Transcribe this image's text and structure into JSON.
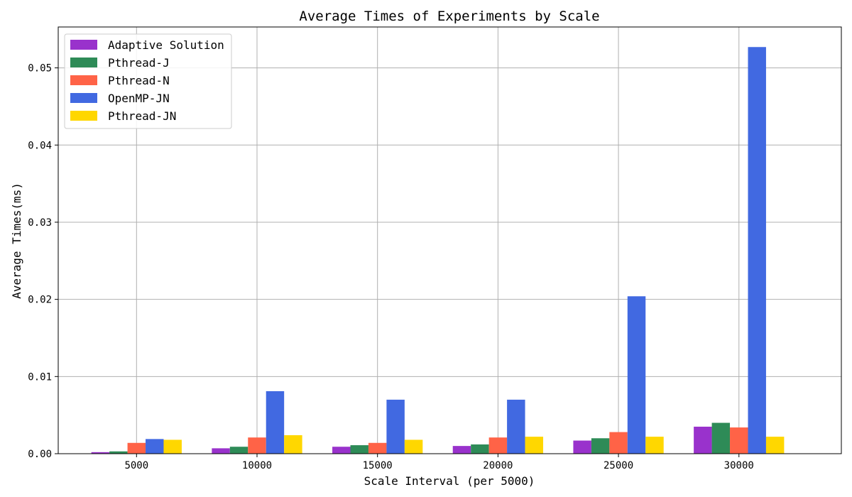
{
  "chart_data": {
    "type": "bar",
    "title": "Average Times of Experiments by Scale",
    "xlabel": "Scale Interval (per 5000)",
    "ylabel": "Average Times(ms)",
    "categories": [
      "5000",
      "10000",
      "15000",
      "20000",
      "25000",
      "30000"
    ],
    "ylim": [
      0,
      0.0553
    ],
    "yticks": [
      0.0,
      0.01,
      0.02,
      0.03,
      0.04,
      0.05
    ],
    "ytick_labels": [
      "0.00",
      "0.01",
      "0.02",
      "0.03",
      "0.04",
      "0.05"
    ],
    "grid": true,
    "legend_position": "top-left",
    "series": [
      {
        "name": "Adaptive Solution",
        "color": "#9932cc",
        "values": [
          0.0002,
          0.0007,
          0.0009,
          0.001,
          0.0017,
          0.0035
        ]
      },
      {
        "name": "Pthread-J",
        "color": "#2e8b57",
        "values": [
          0.0003,
          0.0009,
          0.0011,
          0.0012,
          0.002,
          0.004
        ]
      },
      {
        "name": "Pthread-N",
        "color": "#ff6347",
        "values": [
          0.0014,
          0.0021,
          0.0014,
          0.0021,
          0.0028,
          0.0034
        ]
      },
      {
        "name": "OpenMP-JN",
        "color": "#4169e1",
        "values": [
          0.0019,
          0.0081,
          0.007,
          0.007,
          0.0204,
          0.0527
        ]
      },
      {
        "name": "Pthread-JN",
        "color": "#ffd700",
        "values": [
          0.0018,
          0.0024,
          0.0018,
          0.0022,
          0.0022,
          0.0022
        ]
      }
    ]
  }
}
